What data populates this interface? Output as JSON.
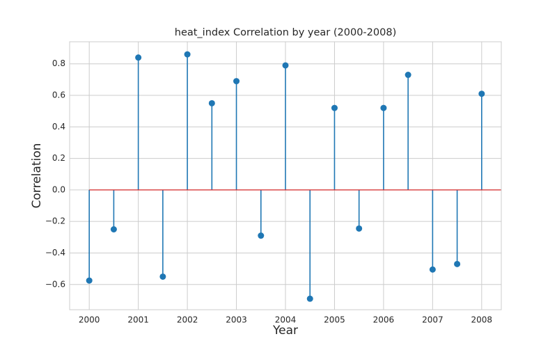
{
  "chart_data": {
    "type": "stem",
    "title": "heat_index Correlation by year (2000-2008)",
    "xlabel": "Year",
    "ylabel": "Correlation",
    "xlim": [
      1999.6,
      2008.4
    ],
    "ylim": [
      -0.76,
      0.94
    ],
    "xticks": [
      2000,
      2001,
      2002,
      2003,
      2004,
      2005,
      2006,
      2007,
      2008
    ],
    "yticks": [
      -0.6,
      -0.4,
      -0.2,
      0.0,
      0.2,
      0.4,
      0.6,
      0.8
    ],
    "ytick_labels": [
      "−0.6",
      "−0.4",
      "−0.2",
      "0.0",
      "0.2",
      "0.4",
      "0.6",
      "0.8"
    ],
    "grid": true,
    "baseline": 0.0,
    "x": [
      2000,
      2000.5,
      2001,
      2001.5,
      2002,
      2002.5,
      2003,
      2003.5,
      2004,
      2004.5,
      2005,
      2005.5,
      2006,
      2006.5,
      2007,
      2007.5,
      2008
    ],
    "values": [
      -0.575,
      -0.25,
      0.84,
      -0.55,
      0.86,
      0.55,
      0.69,
      -0.29,
      0.79,
      -0.69,
      0.52,
      -0.245,
      0.52,
      0.73,
      -0.505,
      -0.47,
      0.61
    ],
    "colors": {
      "stem": "#1f77b4",
      "baseline": "#d62728",
      "grid": "#cccccc",
      "axes_edge": "#cccccc"
    }
  }
}
